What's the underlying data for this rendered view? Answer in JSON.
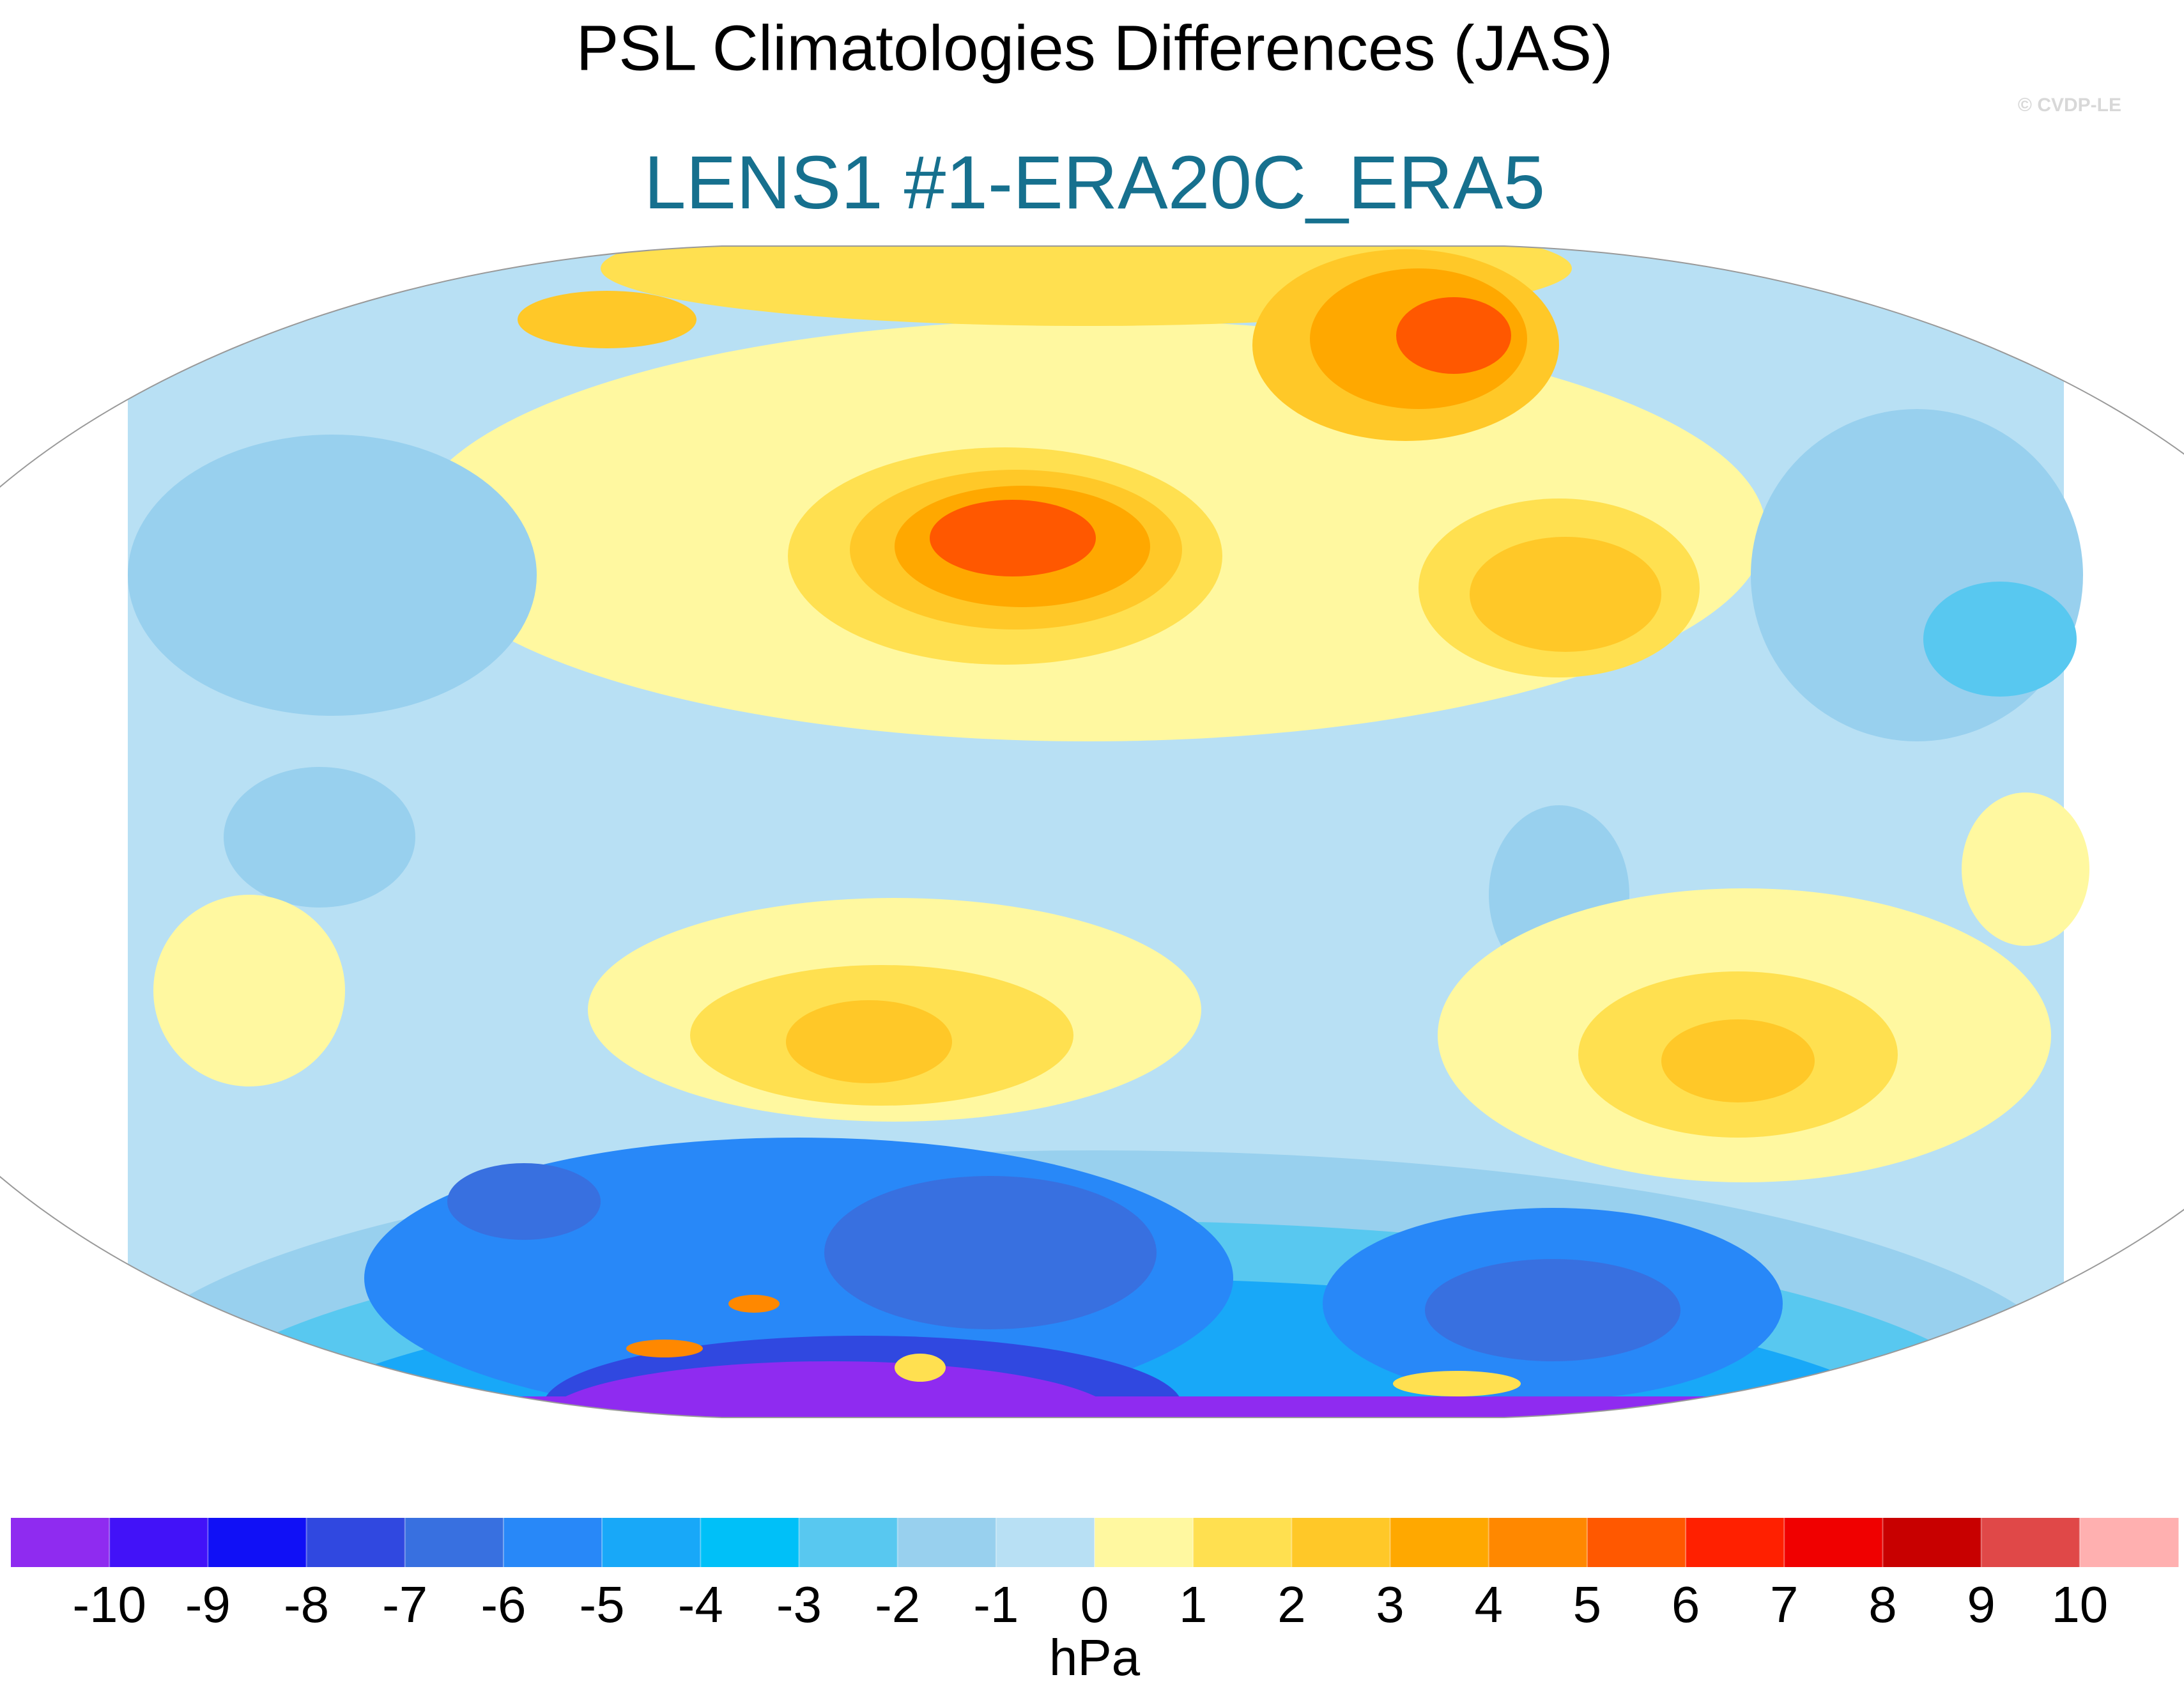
{
  "title": "PSL Climatologies Differences (JAS)",
  "subtitle": "LENS1 #1-ERA20C_ERA5",
  "watermark": "© CVDP-LE",
  "colorbar": {
    "levels": [
      -10,
      -9,
      -8,
      -7,
      -6,
      -5,
      -4,
      -3,
      -2,
      -1,
      0,
      1,
      2,
      3,
      4,
      5,
      6,
      7,
      8,
      9,
      10
    ],
    "colors": [
      "#8f2bf0",
      "#4212f8",
      "#1010f6",
      "#3048e0",
      "#3870e0",
      "#2888f8",
      "#18a8f8",
      "#00c0f8",
      "#58c8f0",
      "#98d0ee",
      "#b8e0f4",
      "#fff8a0",
      "#ffe050",
      "#ffc828",
      "#ffa800",
      "#ff8800",
      "#ff5800",
      "#ff2000",
      "#f00000",
      "#c80000",
      "#e04848",
      "#ffb0b0"
    ],
    "unit": "hPa"
  }
}
